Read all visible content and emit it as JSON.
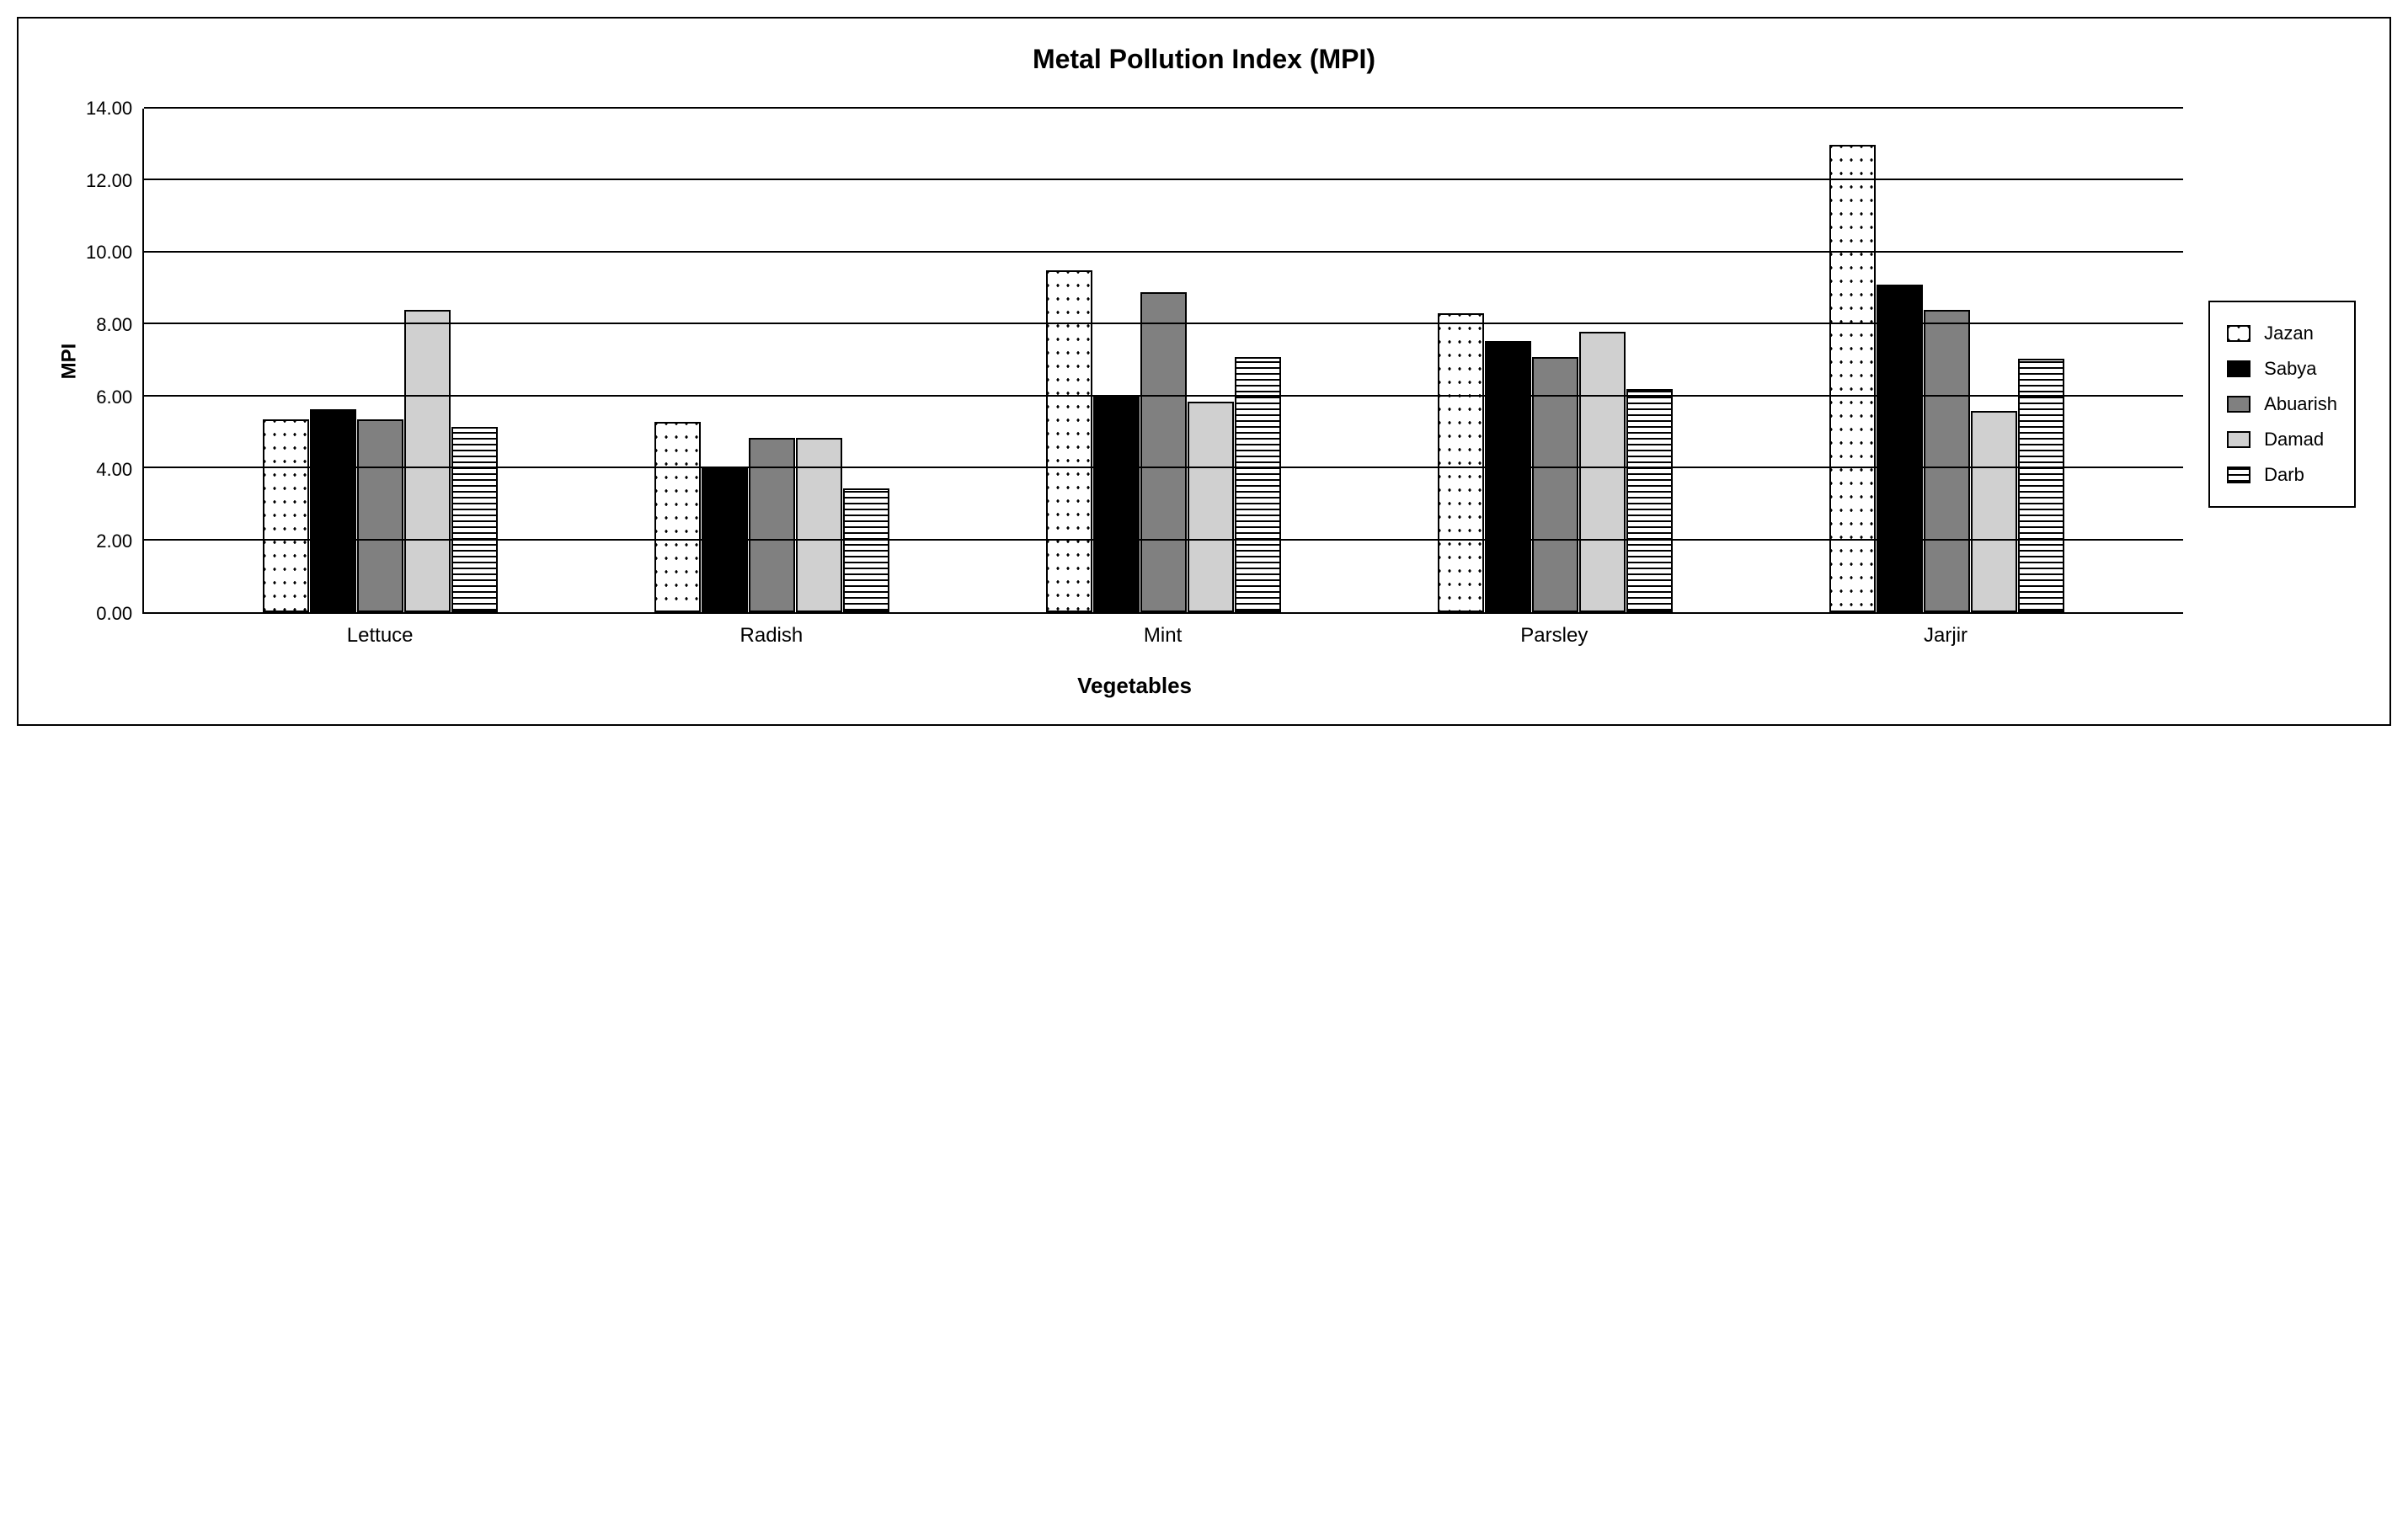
{
  "chart": {
    "type": "bar",
    "title": "Metal Pollution Index (MPI)",
    "title_fontsize": 32,
    "xlabel": "Vegetables",
    "ylabel": "MPI",
    "label_fontsize": 26,
    "background_color": "#ffffff",
    "border_color": "#000000",
    "gridline_color": "#000000",
    "tick_fontsize": 22,
    "ylim": [
      0,
      14
    ],
    "ytick_step": 2,
    "yticks": [
      "0.00",
      "2.00",
      "4.00",
      "6.00",
      "8.00",
      "10.00",
      "12.00",
      "14.00"
    ],
    "categories": [
      "Lettuce",
      "Radish",
      "Mint",
      "Parsley",
      "Jarjir"
    ],
    "series": [
      {
        "name": "Jazan",
        "pattern": "dots",
        "color": "#ffffff",
        "values": [
          5.35,
          5.3,
          9.5,
          8.3,
          13.0
        ]
      },
      {
        "name": "Sabya",
        "pattern": "solid",
        "color": "#000000",
        "values": [
          5.65,
          4.0,
          6.0,
          7.55,
          9.1
        ]
      },
      {
        "name": "Abuarish",
        "pattern": "solid",
        "color": "#808080",
        "values": [
          5.35,
          4.85,
          8.9,
          7.1,
          8.4
        ]
      },
      {
        "name": "Damad",
        "pattern": "solid",
        "color": "#d0d0d0",
        "values": [
          8.4,
          4.85,
          5.85,
          7.8,
          5.6
        ]
      },
      {
        "name": "Darb",
        "pattern": "hstripes",
        "color": "#ffffff",
        "values": [
          5.15,
          3.45,
          7.1,
          6.2,
          7.05
        ]
      }
    ],
    "bar_border_color": "#000000",
    "bar_border_width": 2,
    "legend_position": "right"
  }
}
